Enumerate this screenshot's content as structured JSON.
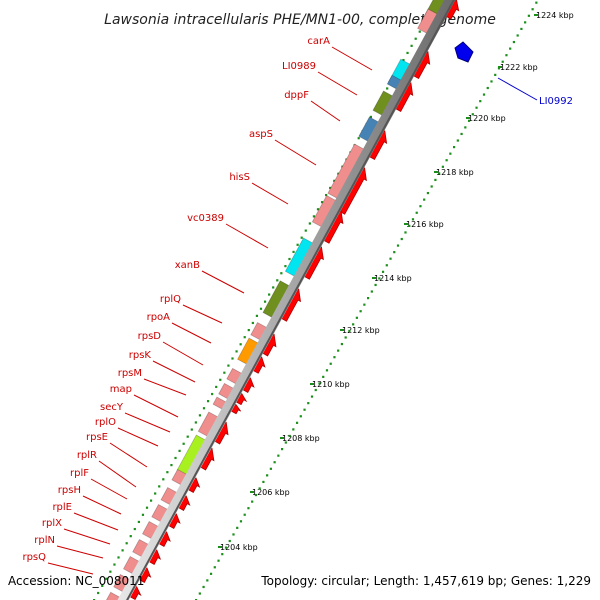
{
  "title": "Lawsonia intracellularis PHE/MN1-00, complete genome",
  "accession": "Accession: NC_008011",
  "topology": "Topology: circular; Length: 1,457,619 bp; Genes: 1,229",
  "colors": {
    "label_red": "#cc0000",
    "label_blue": "#0000cc",
    "feature_red": "#ff0000",
    "feature_pink": "#f08e8e",
    "feature_olive": "#6f8f1f",
    "feature_cyan": "#00e5f0",
    "feature_steel": "#4682b4",
    "feature_lime": "#a8f020",
    "feature_orange": "#ff9a00",
    "feature_blue": "#0000ee",
    "dots": "#1a8f1a"
  },
  "ticks": [
    "1224 kbp",
    "1222 kbp",
    "1220 kbp",
    "1218 kbp",
    "1216 kbp",
    "1214 kbp",
    "1212 kbp",
    "1210 kbp",
    "1208 kbp",
    "1206 kbp",
    "1204 kbp"
  ],
  "gene_labels": [
    {
      "name": "carA",
      "color": "red"
    },
    {
      "name": "LI0989",
      "color": "red"
    },
    {
      "name": "dppF",
      "color": "red"
    },
    {
      "name": "aspS",
      "color": "red"
    },
    {
      "name": "hisS",
      "color": "red"
    },
    {
      "name": "vc0389",
      "color": "red"
    },
    {
      "name": "xanB",
      "color": "red"
    },
    {
      "name": "rplQ",
      "color": "red"
    },
    {
      "name": "rpoA",
      "color": "red"
    },
    {
      "name": "rpsD",
      "color": "red"
    },
    {
      "name": "rpsK",
      "color": "red"
    },
    {
      "name": "rpsM",
      "color": "red"
    },
    {
      "name": "map",
      "color": "red"
    },
    {
      "name": "secY",
      "color": "red"
    },
    {
      "name": "rplO",
      "color": "red"
    },
    {
      "name": "rpsE",
      "color": "red"
    },
    {
      "name": "rplR",
      "color": "red"
    },
    {
      "name": "rplF",
      "color": "red"
    },
    {
      "name": "rpsH",
      "color": "red"
    },
    {
      "name": "rplE",
      "color": "red"
    },
    {
      "name": "rplX",
      "color": "red"
    },
    {
      "name": "rplN",
      "color": "red"
    },
    {
      "name": "rpsQ",
      "color": "red"
    },
    {
      "name": "LI0992",
      "color": "blue"
    }
  ]
}
